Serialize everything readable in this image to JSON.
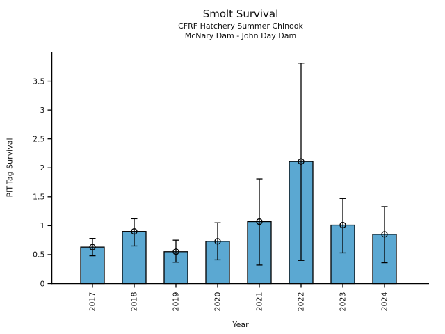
{
  "chart_data": {
    "type": "bar",
    "title": "Smolt Survival",
    "subtitle1": "CFRF Hatchery Summer Chinook",
    "subtitle2": "McNary Dam - John Day Dam",
    "xlabel": "Year",
    "ylabel": "PIT-Tag Survival",
    "categories": [
      "2017",
      "2018",
      "2019",
      "2020",
      "2021",
      "2022",
      "2023",
      "2024"
    ],
    "values": [
      0.63,
      0.9,
      0.55,
      0.73,
      1.07,
      2.11,
      1.01,
      0.85
    ],
    "error_low": [
      0.48,
      0.65,
      0.37,
      0.41,
      0.32,
      0.4,
      0.53,
      0.36
    ],
    "error_high": [
      0.78,
      1.12,
      0.75,
      1.05,
      1.81,
      3.81,
      1.47,
      1.33
    ],
    "yticks": [
      0,
      0.5,
      1,
      1.5,
      2,
      2.5,
      3,
      3.5
    ],
    "ylim": [
      0,
      4
    ],
    "xtick_rotation": 90,
    "grid": false,
    "legend": null,
    "bar_color": "#5BA8D2",
    "edge_color": "#000000",
    "error_color": "#000000",
    "marker": "open-circle"
  }
}
